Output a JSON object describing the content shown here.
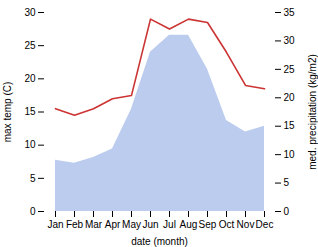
{
  "chart_data": {
    "type": "line",
    "xlabel": "date (month)",
    "ylabel": "max temp (C)",
    "y2label": "med. precipitation (kg/m2)",
    "categories": [
      "Jan",
      "Feb",
      "Mar",
      "Apr",
      "May",
      "Jun",
      "Jul",
      "Aug",
      "Sep",
      "Oct",
      "Nov",
      "Dec"
    ],
    "series": [
      {
        "type": "area",
        "axis": "y2",
        "color": "#bbccee",
        "values": [
          9.0,
          8.5,
          9.5,
          11.0,
          18.0,
          28.0,
          31.0,
          31.0,
          25.0,
          16.0,
          14.0,
          15.0
        ]
      },
      {
        "type": "line",
        "color": "#cc3333",
        "values": [
          15.5,
          14.5,
          15.5,
          17.0,
          17.5,
          29.0,
          27.5,
          29.0,
          28.5,
          24.0,
          19.0,
          18.5
        ]
      }
    ],
    "ylim": [
      0,
      30
    ],
    "yticks": [
      0,
      5,
      10,
      15,
      20,
      25,
      30
    ],
    "y2lim": [
      0,
      35
    ],
    "y2ticks": [
      0,
      5,
      10,
      15,
      20,
      25,
      30,
      35
    ],
    "grid": false
  }
}
